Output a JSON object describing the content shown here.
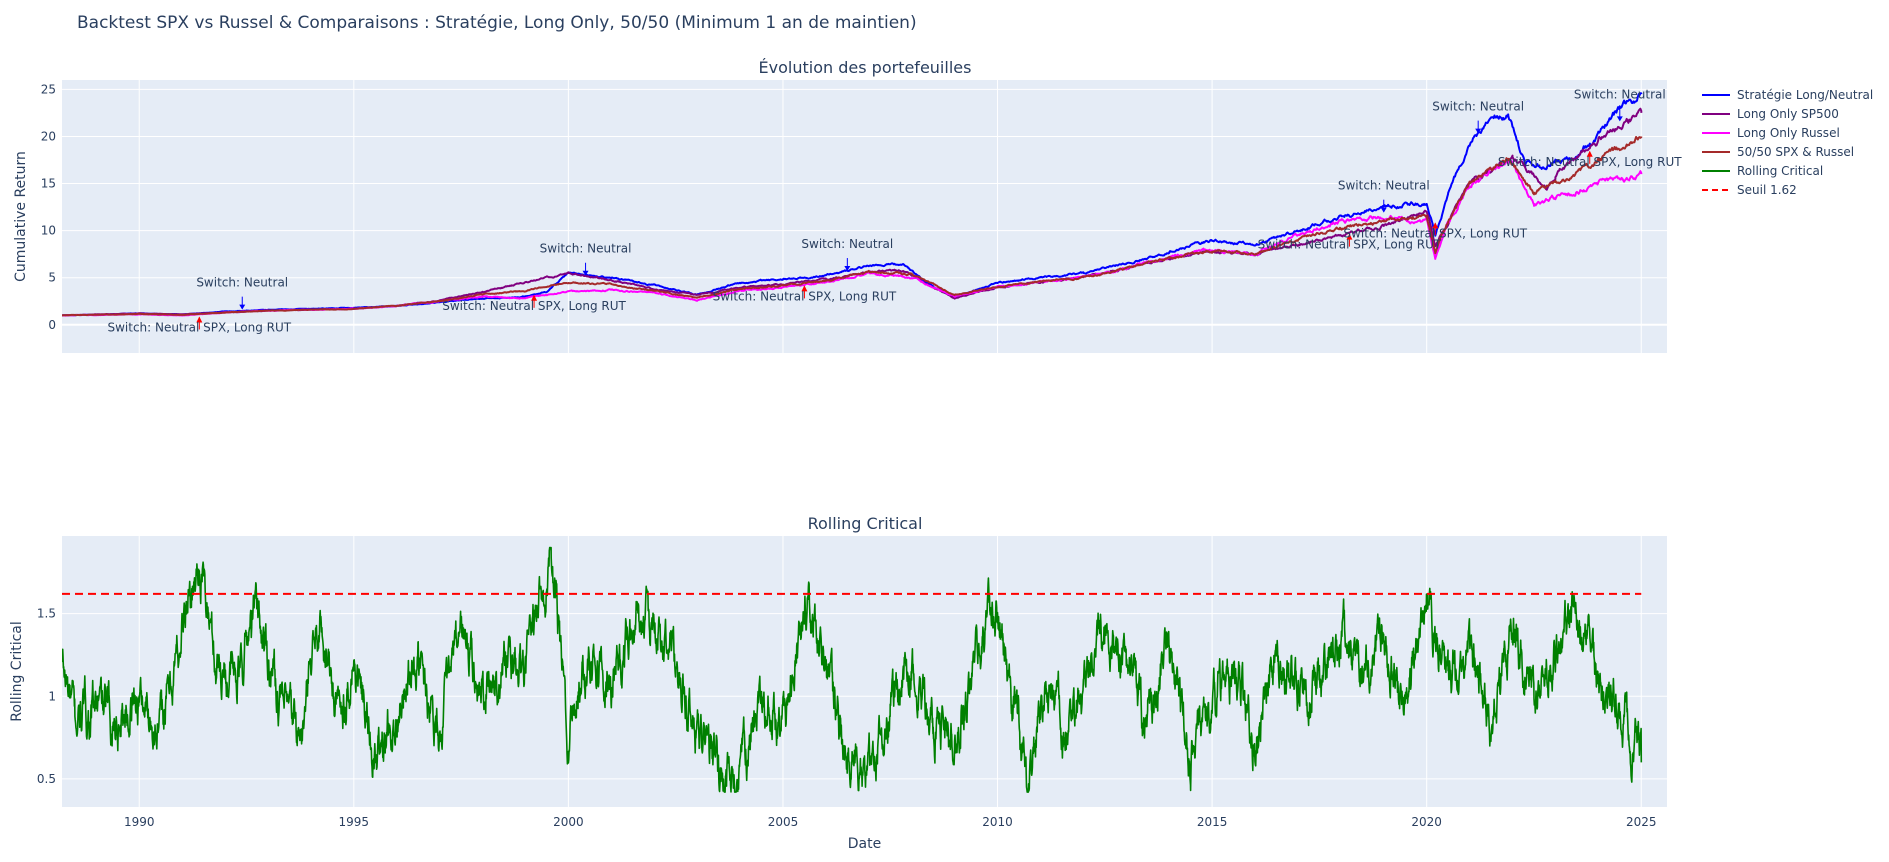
{
  "figure": {
    "title": "Backtest SPX vs Russel & Comparaisons : Stratégie, Long Only, 50/50 (Minimum 1 an de maintien)"
  },
  "colors": {
    "plot_bg": "#e5ecf6",
    "grid": "#ffffff",
    "text": "#2a3f5f",
    "strategy": "#0000ff",
    "spx": "#800080",
    "rut": "#ff00ff",
    "half": "#a52a2a",
    "critical": "#008000",
    "threshold": "#ff0000"
  },
  "chart_data": [
    {
      "type": "line",
      "title": "Évolution des portefeuilles",
      "ylabel": "Cumulative Return",
      "xlabel": "",
      "xlim": [
        1988.2,
        2025.6
      ],
      "ylim": [
        -3,
        26
      ],
      "xticks": [
        1990,
        1995,
        2000,
        2005,
        2010,
        2015,
        2020,
        2025
      ],
      "yticks": [
        0,
        5,
        10,
        15,
        20,
        25
      ],
      "ytick_labels": [
        "0",
        "5",
        "10",
        "15",
        "20",
        "25"
      ],
      "grid": true,
      "legend_position": "top-right-outside",
      "series": [
        {
          "name": "Stratégie Long/Neutral",
          "color": "#0000ff",
          "noise": 0.012,
          "x": [
            1988.2,
            1990,
            1991,
            1992,
            1993,
            1994,
            1995,
            1996,
            1997,
            1998,
            1999,
            1999.5,
            2000,
            2001,
            2002,
            2003,
            2004,
            2005,
            2006,
            2007,
            2007.8,
            2008.5,
            2009,
            2010,
            2011,
            2012,
            2013,
            2014,
            2015,
            2016,
            2017,
            2018,
            2019,
            2020,
            2020.2,
            2020.5,
            2021,
            2021.5,
            2021.9,
            2022.3,
            2022.8,
            2023,
            2023.5,
            2024,
            2024.5,
            2025
          ],
          "y": [
            1.0,
            1.2,
            1.1,
            1.4,
            1.6,
            1.7,
            1.8,
            2.0,
            2.4,
            2.8,
            3.0,
            3.5,
            5.5,
            5.0,
            4.2,
            3.2,
            4.5,
            4.8,
            5.2,
            6.3,
            6.4,
            4.0,
            3.0,
            4.5,
            5.0,
            5.5,
            6.5,
            7.8,
            9.0,
            8.5,
            10.0,
            11.5,
            12.5,
            13.0,
            9.5,
            14.0,
            19.0,
            22.0,
            22.5,
            17.0,
            17.0,
            17.5,
            18.0,
            20.0,
            23.0,
            24.5
          ]
        },
        {
          "name": "Long Only SP500",
          "color": "#800080",
          "noise": 0.012,
          "x": [
            1988.2,
            1990,
            1991,
            1992,
            1993,
            1994,
            1995,
            1996,
            1997,
            1998,
            1999,
            2000,
            2001,
            2002,
            2003,
            2004,
            2005,
            2006,
            2007,
            2007.8,
            2008.5,
            2009,
            2010,
            2011,
            2012,
            2013,
            2014,
            2015,
            2016,
            2017,
            2018,
            2019,
            2020,
            2020.2,
            2020.5,
            2021,
            2022,
            2022.8,
            2023,
            2024,
            2025
          ],
          "y": [
            1.0,
            1.2,
            1.1,
            1.3,
            1.5,
            1.6,
            1.7,
            2.0,
            2.6,
            3.5,
            4.5,
            5.5,
            4.8,
            3.8,
            3.2,
            4.0,
            4.3,
            4.8,
            5.6,
            5.8,
            4.0,
            2.8,
            4.0,
            4.5,
            5.0,
            6.0,
            7.0,
            7.8,
            7.5,
            8.5,
            9.5,
            10.5,
            12.0,
            8.5,
            11.0,
            15.0,
            18.0,
            14.5,
            16.0,
            19.5,
            22.5
          ]
        },
        {
          "name": "Long Only Russel",
          "color": "#ff00ff",
          "noise": 0.014,
          "x": [
            1988.2,
            1990,
            1991,
            1992,
            1993,
            1994,
            1995,
            1996,
            1997,
            1998,
            1999,
            2000,
            2001,
            2002,
            2003,
            2004,
            2005,
            2006,
            2007,
            2008,
            2009,
            2010,
            2011,
            2012,
            2013,
            2014,
            2015,
            2016,
            2017,
            2018,
            2019,
            2020,
            2020.2,
            2020.5,
            2021,
            2021.9,
            2022.5,
            2023,
            2024,
            2025
          ],
          "y": [
            1.0,
            1.1,
            1.0,
            1.3,
            1.5,
            1.6,
            1.7,
            2.0,
            2.5,
            3.0,
            2.8,
            3.5,
            3.7,
            3.4,
            2.6,
            3.6,
            4.0,
            4.5,
            5.5,
            5.0,
            3.0,
            4.0,
            4.6,
            5.0,
            6.0,
            7.2,
            8.0,
            7.5,
            9.5,
            11.0,
            11.5,
            11.0,
            7.0,
            11.0,
            15.0,
            17.5,
            13.0,
            13.5,
            15.0,
            16.0
          ]
        },
        {
          "name": "50/50 SPX & Russel",
          "color": "#a52a2a",
          "noise": 0.012,
          "x": [
            1988.2,
            1990,
            1991,
            1992,
            1993,
            1994,
            1995,
            1996,
            1997,
            1998,
            1999,
            2000,
            2001,
            2002,
            2003,
            2004,
            2005,
            2006,
            2007,
            2008,
            2009,
            2010,
            2011,
            2012,
            2013,
            2014,
            2015,
            2016,
            2017,
            2018,
            2019,
            2020,
            2020.2,
            2020.5,
            2021,
            2021.9,
            2022.5,
            2023,
            2024,
            2025
          ],
          "y": [
            1.0,
            1.15,
            1.05,
            1.3,
            1.5,
            1.6,
            1.7,
            2.0,
            2.5,
            3.2,
            3.6,
            4.5,
            4.3,
            3.6,
            2.9,
            3.8,
            4.2,
            4.7,
            5.6,
            5.4,
            3.2,
            4.0,
            4.6,
            5.0,
            6.0,
            7.1,
            7.9,
            7.5,
            9.0,
            10.3,
            11.0,
            11.5,
            7.8,
            11.0,
            15.0,
            17.8,
            14.0,
            15.0,
            17.5,
            20.0
          ]
        }
      ],
      "annotations": [
        {
          "text": "Switch: Neutral",
          "x": 1992.4,
          "y": 1.5,
          "side": "above",
          "arrow_color": "#0000ff"
        },
        {
          "text": "Switch: Neutral SPX, Long RUT",
          "x": 1991.4,
          "y": 1.2,
          "side": "below",
          "arrow_color": "#ff0000"
        },
        {
          "text": "Switch: Neutral",
          "x": 2000.4,
          "y": 5.1,
          "side": "above",
          "arrow_color": "#0000ff"
        },
        {
          "text": "Switch: Neutral SPX, Long RUT",
          "x": 1999.2,
          "y": 3.5,
          "side": "below",
          "arrow_color": "#ff0000"
        },
        {
          "text": "Switch: Neutral",
          "x": 2006.5,
          "y": 5.6,
          "side": "above",
          "arrow_color": "#0000ff"
        },
        {
          "text": "Switch: Neutral SPX, Long RUT",
          "x": 2005.5,
          "y": 4.5,
          "side": "below",
          "arrow_color": "#ff0000"
        },
        {
          "text": "Switch: Neutral",
          "x": 2019.0,
          "y": 11.8,
          "side": "above",
          "arrow_color": "#0000ff"
        },
        {
          "text": "Switch: Neutral SPX, Long RUT",
          "x": 2018.2,
          "y": 10.0,
          "side": "below",
          "arrow_color": "#ff0000"
        },
        {
          "text": "Switch: Neutral",
          "x": 2021.2,
          "y": 20.2,
          "side": "above",
          "arrow_color": "#0000ff"
        },
        {
          "text": "Switch: Neutral SPX, Long RUT",
          "x": 2020.2,
          "y": 11.2,
          "side": "below",
          "arrow_color": "#ff0000"
        },
        {
          "text": "Switch: Neutral",
          "x": 2024.5,
          "y": 21.5,
          "side": "above",
          "arrow_color": "#0000ff"
        },
        {
          "text": "Switch: Neutral SPX, Long RUT",
          "x": 2023.8,
          "y": 18.8,
          "side": "below",
          "arrow_color": "#ff0000"
        }
      ]
    },
    {
      "type": "line",
      "title": "Rolling Critical",
      "ylabel": "Rolling Critical",
      "xlabel": "Date",
      "xlim": [
        1988.2,
        2025.6
      ],
      "ylim": [
        0.33,
        1.97
      ],
      "xticks": [
        1990,
        1995,
        2000,
        2005,
        2010,
        2015,
        2020,
        2025
      ],
      "xtick_labels": [
        "1990",
        "1995",
        "2000",
        "2005",
        "2010",
        "2015",
        "2020",
        "2025"
      ],
      "yticks": [
        0.5,
        1,
        1.5
      ],
      "ytick_labels": [
        "0.5",
        "1",
        "1.5"
      ],
      "grid": true,
      "threshold": {
        "name": "Seuil 1.62",
        "value": 1.62,
        "x_start": 1988.2,
        "x_end": 2025,
        "color": "#ff0000",
        "dash": true
      },
      "series": [
        {
          "name": "Rolling Critical",
          "color": "#008000",
          "noise": 0.09,
          "x": [
            1988.2,
            1988.5,
            1989,
            1989.5,
            1990,
            1990.5,
            1991,
            1991.4,
            1991.8,
            1992.3,
            1992.7,
            1993,
            1993.4,
            1993.8,
            1994.2,
            1994.6,
            1995,
            1995.5,
            1996,
            1996.5,
            1997,
            1997.5,
            1998,
            1998.5,
            1999,
            1999.3,
            1999.6,
            2000,
            2000.5,
            2001,
            2001.5,
            2002,
            2002.5,
            2003,
            2003.5,
            2003.9,
            2004.5,
            2005,
            2005.6,
            2006,
            2006.5,
            2007,
            2007.5,
            2008,
            2008.5,
            2009,
            2009.5,
            2010,
            2010.3,
            2010.7,
            2011.2,
            2011.6,
            2012,
            2012.5,
            2013,
            2013.5,
            2014,
            2014.5,
            2015,
            2015.5,
            2016,
            2016.5,
            2017,
            2017.5,
            2018,
            2018.5,
            2019,
            2019.5,
            2020,
            2020.5,
            2021,
            2021.5,
            2022,
            2022.5,
            2023,
            2023.5,
            2024,
            2024.5,
            2025
          ],
          "y": [
            1.2,
            0.85,
            0.95,
            0.85,
            1.0,
            0.8,
            1.4,
            1.82,
            1.2,
            1.1,
            1.55,
            1.25,
            0.9,
            0.75,
            1.5,
            0.9,
            1.2,
            0.6,
            0.9,
            1.2,
            0.8,
            1.4,
            1.0,
            1.2,
            1.1,
            1.6,
            1.85,
            0.8,
            1.3,
            1.0,
            1.5,
            1.4,
            1.2,
            0.8,
            0.55,
            0.45,
            1.0,
            0.8,
            1.6,
            1.1,
            0.6,
            0.55,
            0.9,
            1.2,
            0.8,
            0.7,
            1.2,
            1.55,
            1.0,
            0.5,
            1.1,
            0.8,
            1.1,
            1.4,
            1.2,
            0.8,
            1.3,
            0.7,
            0.9,
            1.2,
            0.7,
            1.3,
            1.0,
            1.1,
            1.4,
            1.2,
            1.3,
            0.9,
            1.6,
            1.1,
            1.3,
            0.8,
            1.4,
            1.0,
            1.25,
            1.5,
            1.1,
            0.9,
            0.6
          ]
        }
      ]
    }
  ]
}
